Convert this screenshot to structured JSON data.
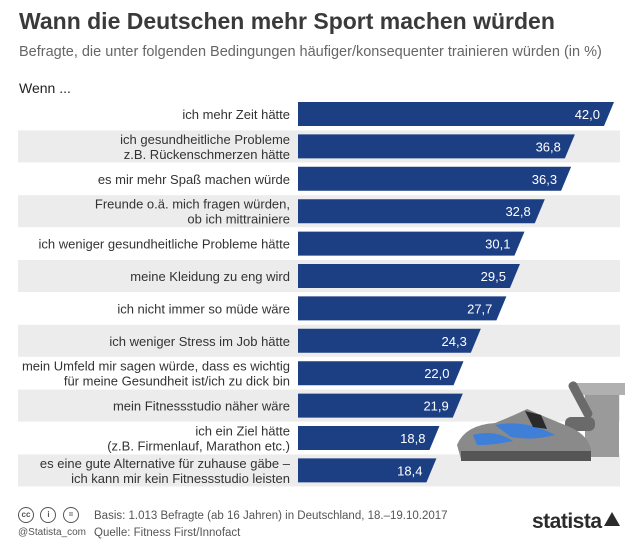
{
  "header": {
    "title": "Wann die Deutschen mehr Sport machen würden",
    "subtitle": "Befragte, die unter folgenden Bedingungen häufiger/konsequenter trainieren würden (in %)",
    "intro": "Wenn ..."
  },
  "chart_data": {
    "type": "bar",
    "orientation": "horizontal",
    "title": "Wann die Deutschen mehr Sport machen würden",
    "subtitle": "Befragte, die unter folgenden Bedingungen häufiger/konsequenter trainieren würden (in %)",
    "categories": [
      [
        "ich mehr Zeit hätte"
      ],
      [
        "ich gesundheitliche Probleme",
        "z.B. Rückenschmerzen hätte"
      ],
      [
        "es mir mehr Spaß machen würde"
      ],
      [
        "Freunde o.ä. mich fragen würden,",
        "ob ich mittrainiere"
      ],
      [
        "ich weniger gesundheitliche Probleme hätte"
      ],
      [
        "meine Kleidung zu eng wird"
      ],
      [
        "ich nicht immer so müde wäre"
      ],
      [
        "ich weniger Stress im Job hätte"
      ],
      [
        "mein Umfeld mir sagen würde, dass es wichtig",
        "für meine Gesundheit ist/ich zu dick bin"
      ],
      [
        "mein Fitnessstudio näher wäre"
      ],
      [
        "ich ein Ziel hätte",
        "(z.B. Firmenlauf, Marathon etc.)"
      ],
      [
        "es eine gute Alternative für zuhause gäbe –",
        "ich kann mir kein Fitnessstudio leisten"
      ]
    ],
    "values": [
      42.0,
      36.8,
      36.3,
      32.8,
      30.1,
      29.5,
      27.7,
      24.3,
      22.0,
      21.9,
      18.8,
      18.4
    ],
    "value_labels": [
      "42,0",
      "36,8",
      "36,3",
      "32,8",
      "30,1",
      "29,5",
      "27,7",
      "24,3",
      "22,0",
      "21,9",
      "18,8",
      "18,4"
    ],
    "xlim": [
      0,
      42
    ],
    "colors": {
      "bar": "#1c3f84",
      "row_band": "#ececec",
      "value_text": "#ffffff"
    },
    "grid": false,
    "legend": "none"
  },
  "footer": {
    "basis": "Basis: 1.013 Befragte (ab 16 Jahren) in Deutschland, 18.–19.10.2017",
    "source": "Quelle: Fitness First/Innofact",
    "handle": "@Statista_com",
    "brand": "statista",
    "license_icons": [
      "cc",
      "i",
      "="
    ]
  },
  "illustration": {
    "icon": "sneaker-and-kettlebell-icon"
  }
}
